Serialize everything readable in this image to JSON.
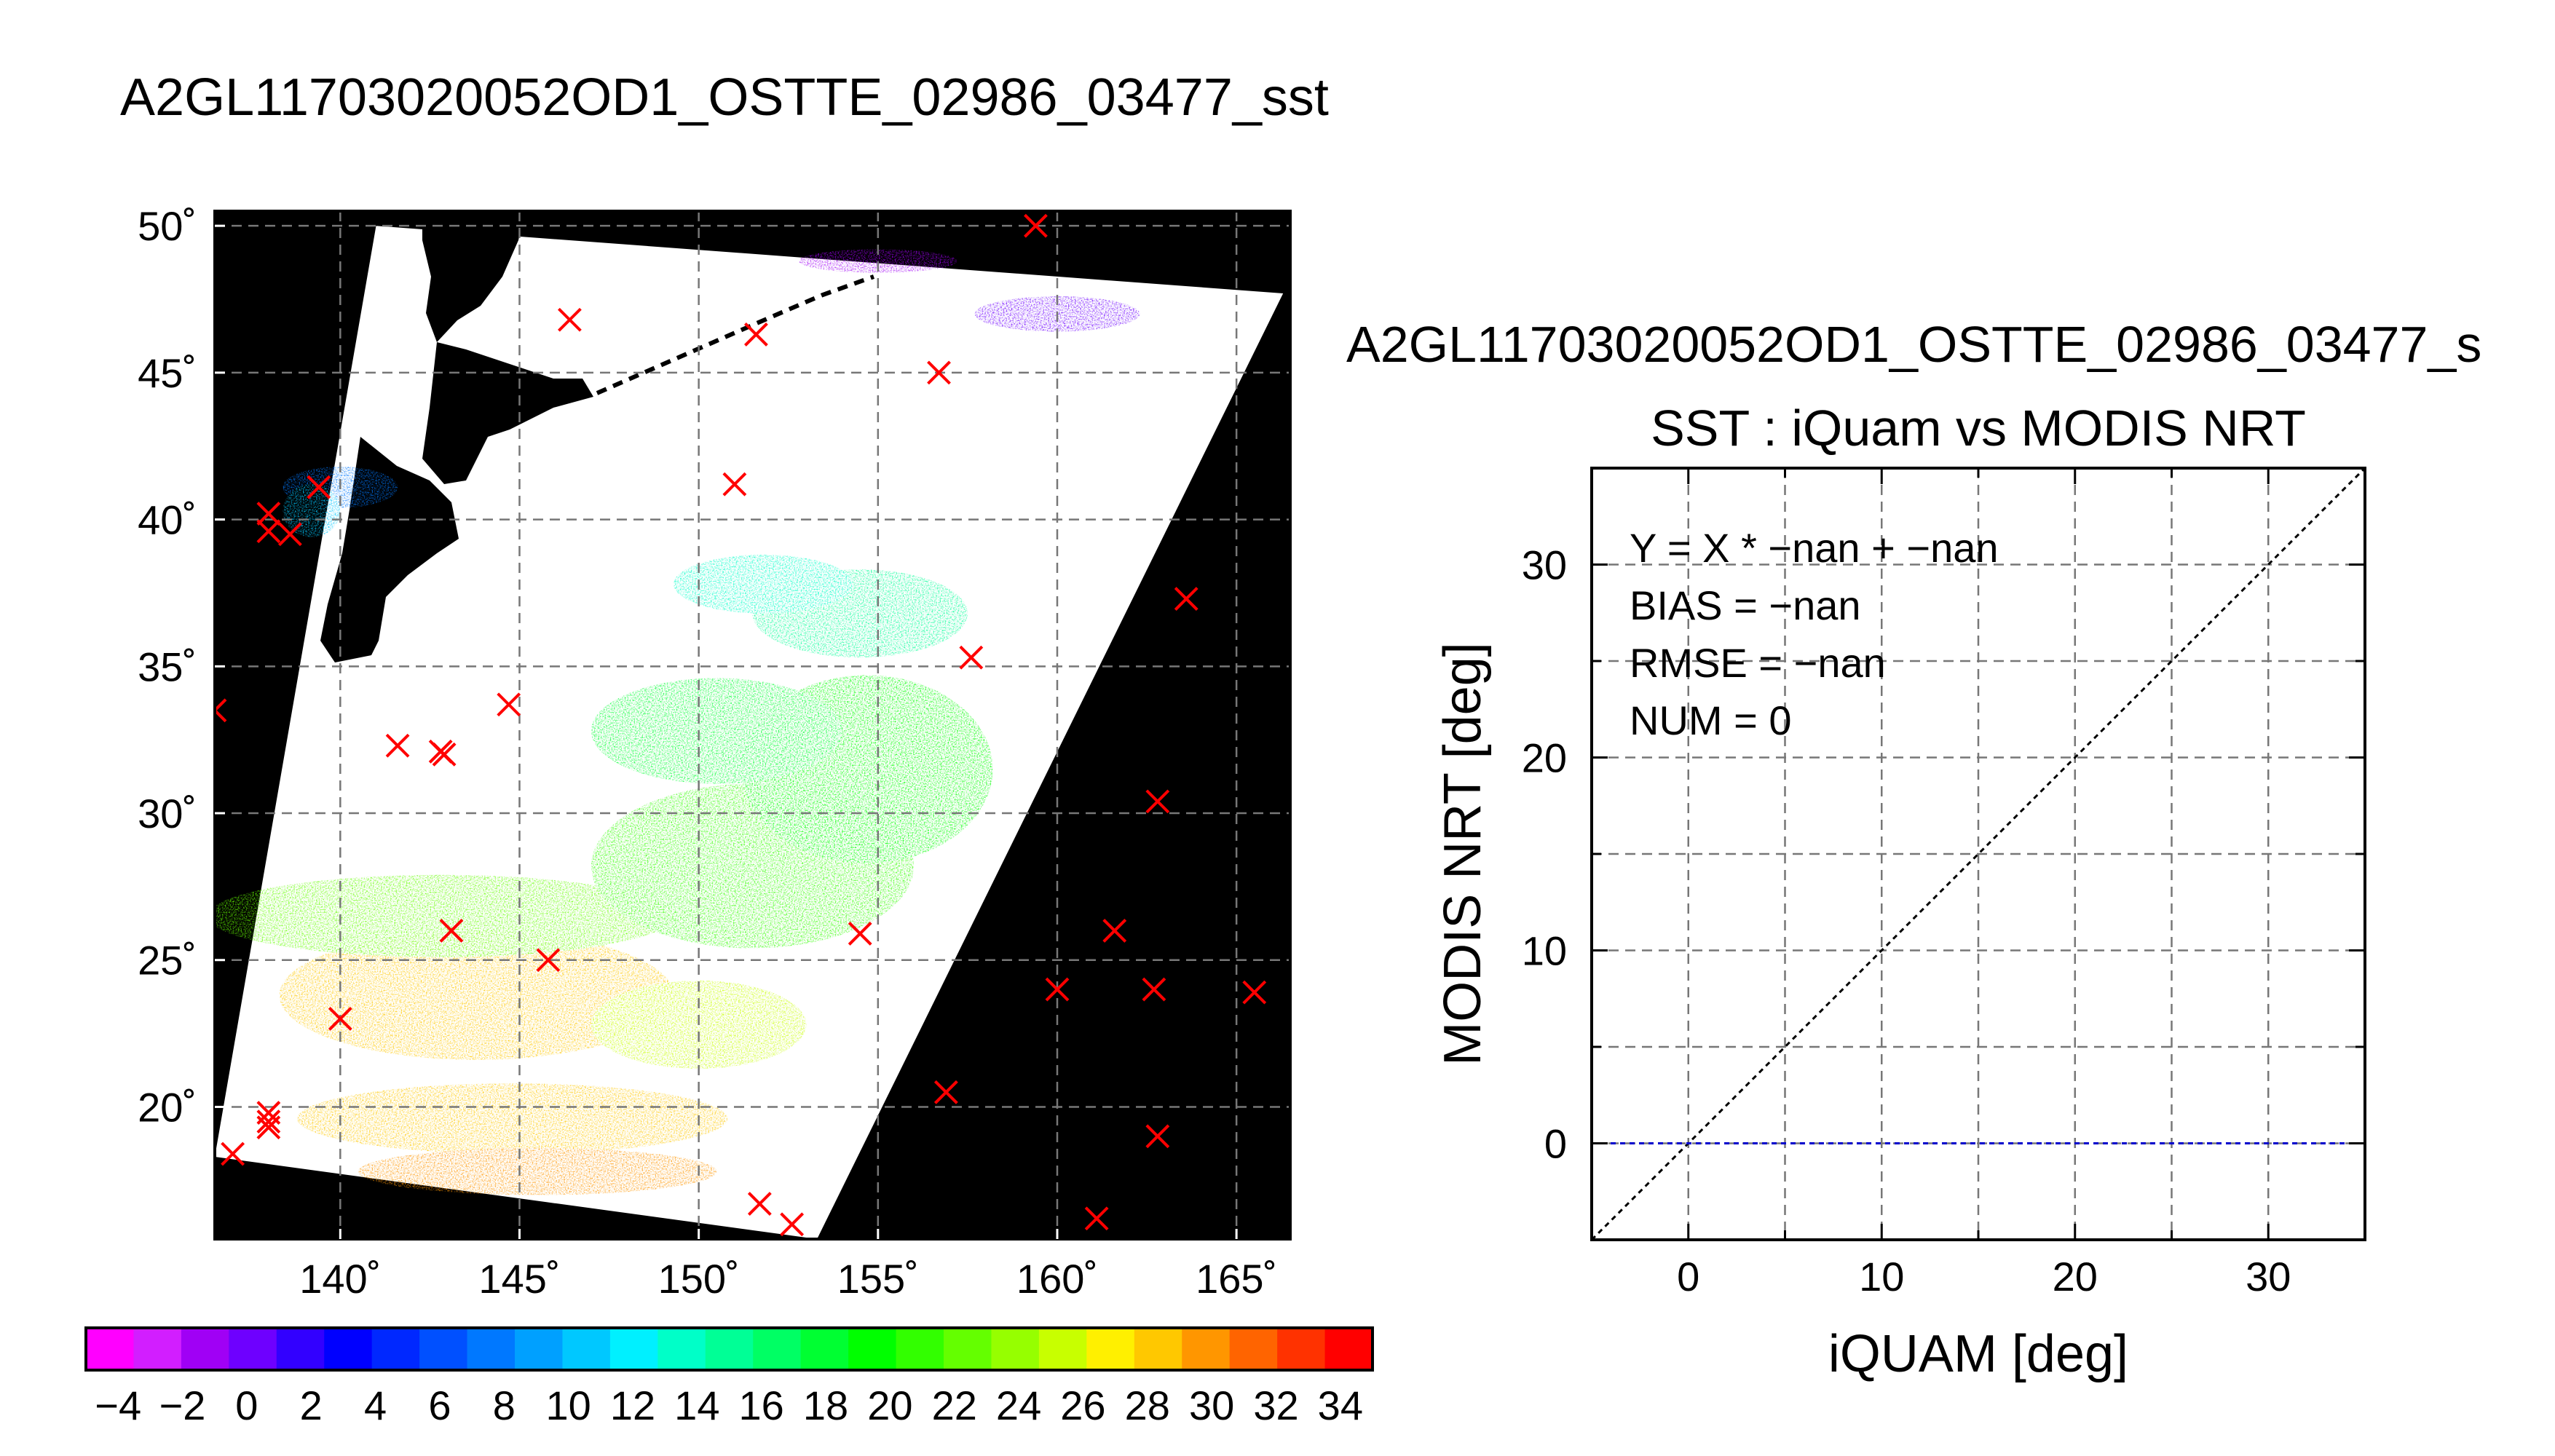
{
  "map_title": "A2GL11703020052OD1_OSTTE_02986_03477_sst",
  "scatter_title": "A2GL11703020052OD1_OSTTE_02986_03477_s",
  "chart_data": [
    {
      "type": "scatter",
      "subtype": "map",
      "title": "A2GL11703020052OD1_OSTTE_02986_03477_sst",
      "xlim": [
        136.5,
        166.5
      ],
      "ylim": [
        15.5,
        50.5
      ],
      "x_ticks": [
        140,
        145,
        150,
        155,
        160,
        165
      ],
      "x_tick_labels": [
        "140˚",
        "145˚",
        "150˚",
        "155˚",
        "160˚",
        "165˚"
      ],
      "y_ticks": [
        20,
        25,
        30,
        35,
        40,
        45,
        50
      ],
      "y_tick_labels": [
        "20˚",
        "25˚",
        "30˚",
        "35˚",
        "40˚",
        "45˚",
        "50˚"
      ],
      "grid": true,
      "swath": [
        [
          141,
          50
        ],
        [
          166.3,
          47.7
        ],
        [
          153.3,
          15.5
        ],
        [
          136.5,
          18.3
        ]
      ],
      "sst_regions": [
        {
          "lon": 143.8,
          "lat": 23.8,
          "rx": 5.5,
          "ry": 2.2,
          "value": 28
        },
        {
          "lon": 142.8,
          "lat": 26.5,
          "rx": 6.5,
          "ry": 1.4,
          "value": 22
        },
        {
          "lon": 144.8,
          "lat": 19.6,
          "rx": 6.0,
          "ry": 1.2,
          "value": 28
        },
        {
          "lon": 145.5,
          "lat": 17.8,
          "rx": 5.0,
          "ry": 0.8,
          "value": 30
        },
        {
          "lon": 150.0,
          "lat": 22.8,
          "rx": 3.0,
          "ry": 1.5,
          "value": 26
        },
        {
          "lon": 151.5,
          "lat": 28.2,
          "rx": 4.5,
          "ry": 2.8,
          "value": 21
        },
        {
          "lon": 154.7,
          "lat": 31.5,
          "rx": 3.5,
          "ry": 3.2,
          "value": 20
        },
        {
          "lon": 150.5,
          "lat": 32.8,
          "rx": 3.5,
          "ry": 1.8,
          "value": 18
        },
        {
          "lon": 154.5,
          "lat": 36.8,
          "rx": 3.0,
          "ry": 1.5,
          "value": 15
        },
        {
          "lon": 151.8,
          "lat": 37.8,
          "rx": 2.5,
          "ry": 1.0,
          "value": 13
        },
        {
          "lon": 140.0,
          "lat": 41.1,
          "rx": 1.6,
          "ry": 0.7,
          "value": 8
        },
        {
          "lon": 139.2,
          "lat": 40.3,
          "rx": 0.8,
          "ry": 0.9,
          "value": 10
        },
        {
          "lon": 155.0,
          "lat": 48.8,
          "rx": 2.2,
          "ry": 0.4,
          "value": -1
        },
        {
          "lon": 160.0,
          "lat": 47.0,
          "rx": 2.3,
          "ry": 0.6,
          "value": 0
        }
      ],
      "matchup_points": [
        {
          "lon": 159.4,
          "lat": 50.0
        },
        {
          "lon": 146.4,
          "lat": 46.8
        },
        {
          "lon": 151.6,
          "lat": 46.3
        },
        {
          "lon": 156.7,
          "lat": 45.0
        },
        {
          "lon": 151.0,
          "lat": 41.2
        },
        {
          "lon": 139.4,
          "lat": 41.1
        },
        {
          "lon": 138.0,
          "lat": 40.2
        },
        {
          "lon": 138.0,
          "lat": 39.6
        },
        {
          "lon": 138.6,
          "lat": 39.5
        },
        {
          "lon": 163.6,
          "lat": 37.3
        },
        {
          "lon": 157.6,
          "lat": 35.3
        },
        {
          "lon": 136.5,
          "lat": 33.5
        },
        {
          "lon": 144.7,
          "lat": 33.7
        },
        {
          "lon": 141.6,
          "lat": 32.3
        },
        {
          "lon": 142.8,
          "lat": 32.1
        },
        {
          "lon": 142.9,
          "lat": 32.0
        },
        {
          "lon": 162.8,
          "lat": 30.4
        },
        {
          "lon": 143.1,
          "lat": 26.0
        },
        {
          "lon": 154.5,
          "lat": 25.9
        },
        {
          "lon": 161.6,
          "lat": 26.0
        },
        {
          "lon": 145.8,
          "lat": 25.0
        },
        {
          "lon": 160.0,
          "lat": 24.0
        },
        {
          "lon": 162.7,
          "lat": 24.0
        },
        {
          "lon": 165.5,
          "lat": 23.9
        },
        {
          "lon": 140.0,
          "lat": 23.0
        },
        {
          "lon": 156.9,
          "lat": 20.5
        },
        {
          "lon": 138.0,
          "lat": 19.8
        },
        {
          "lon": 138.0,
          "lat": 19.5
        },
        {
          "lon": 138.0,
          "lat": 19.3
        },
        {
          "lon": 162.8,
          "lat": 19.0
        },
        {
          "lon": 137.0,
          "lat": 18.4
        },
        {
          "lon": 151.7,
          "lat": 16.7
        },
        {
          "lon": 161.1,
          "lat": 16.2
        },
        {
          "lon": 152.6,
          "lat": 16.0
        }
      ]
    },
    {
      "type": "scatter",
      "title": "SST : iQuam vs MODIS NRT",
      "xlabel": "iQUAM [deg]",
      "ylabel": "MODIS NRT [deg]",
      "xlim": [
        -5,
        35
      ],
      "ylim": [
        -5,
        35
      ],
      "x_ticks": [
        0,
        10,
        20,
        30
      ],
      "y_ticks": [
        0,
        10,
        20,
        30
      ],
      "grid_step": 5,
      "grid": true,
      "series": [],
      "reference_lines": [
        {
          "kind": "identity",
          "from": [
            -5,
            -5
          ],
          "to": [
            35,
            35
          ],
          "color": "#000000"
        },
        {
          "kind": "zero",
          "from": [
            -5,
            0
          ],
          "to": [
            35,
            0
          ],
          "color": "#0000cc"
        }
      ],
      "stats": [
        "Y = X * −nan + −nan",
        "BIAS = −nan",
        "RMSE = −nan",
        "NUM = 0"
      ]
    },
    {
      "type": "heatmap",
      "subtype": "colorbar",
      "range": [
        -5,
        35
      ],
      "step": 2,
      "tick_labels": [
        "−4",
        "−2",
        "0",
        "2",
        "4",
        "6",
        "8",
        "10",
        "12",
        "14",
        "16",
        "18",
        "20",
        "22",
        "24",
        "26",
        "28",
        "30",
        "32",
        "34"
      ],
      "colors": [
        "#ff00ff",
        "#d21eff",
        "#a000f5",
        "#6e00ff",
        "#3200ff",
        "#0000ff",
        "#0028ff",
        "#0050ff",
        "#0078ff",
        "#00a0ff",
        "#00c8ff",
        "#00f0ff",
        "#00ffc8",
        "#00ff96",
        "#00ff64",
        "#00ff32",
        "#00ff00",
        "#32ff00",
        "#64ff00",
        "#96ff00",
        "#c8ff00",
        "#fff000",
        "#ffc800",
        "#ff9600",
        "#ff6400",
        "#ff3200",
        "#ff0000"
      ]
    }
  ]
}
